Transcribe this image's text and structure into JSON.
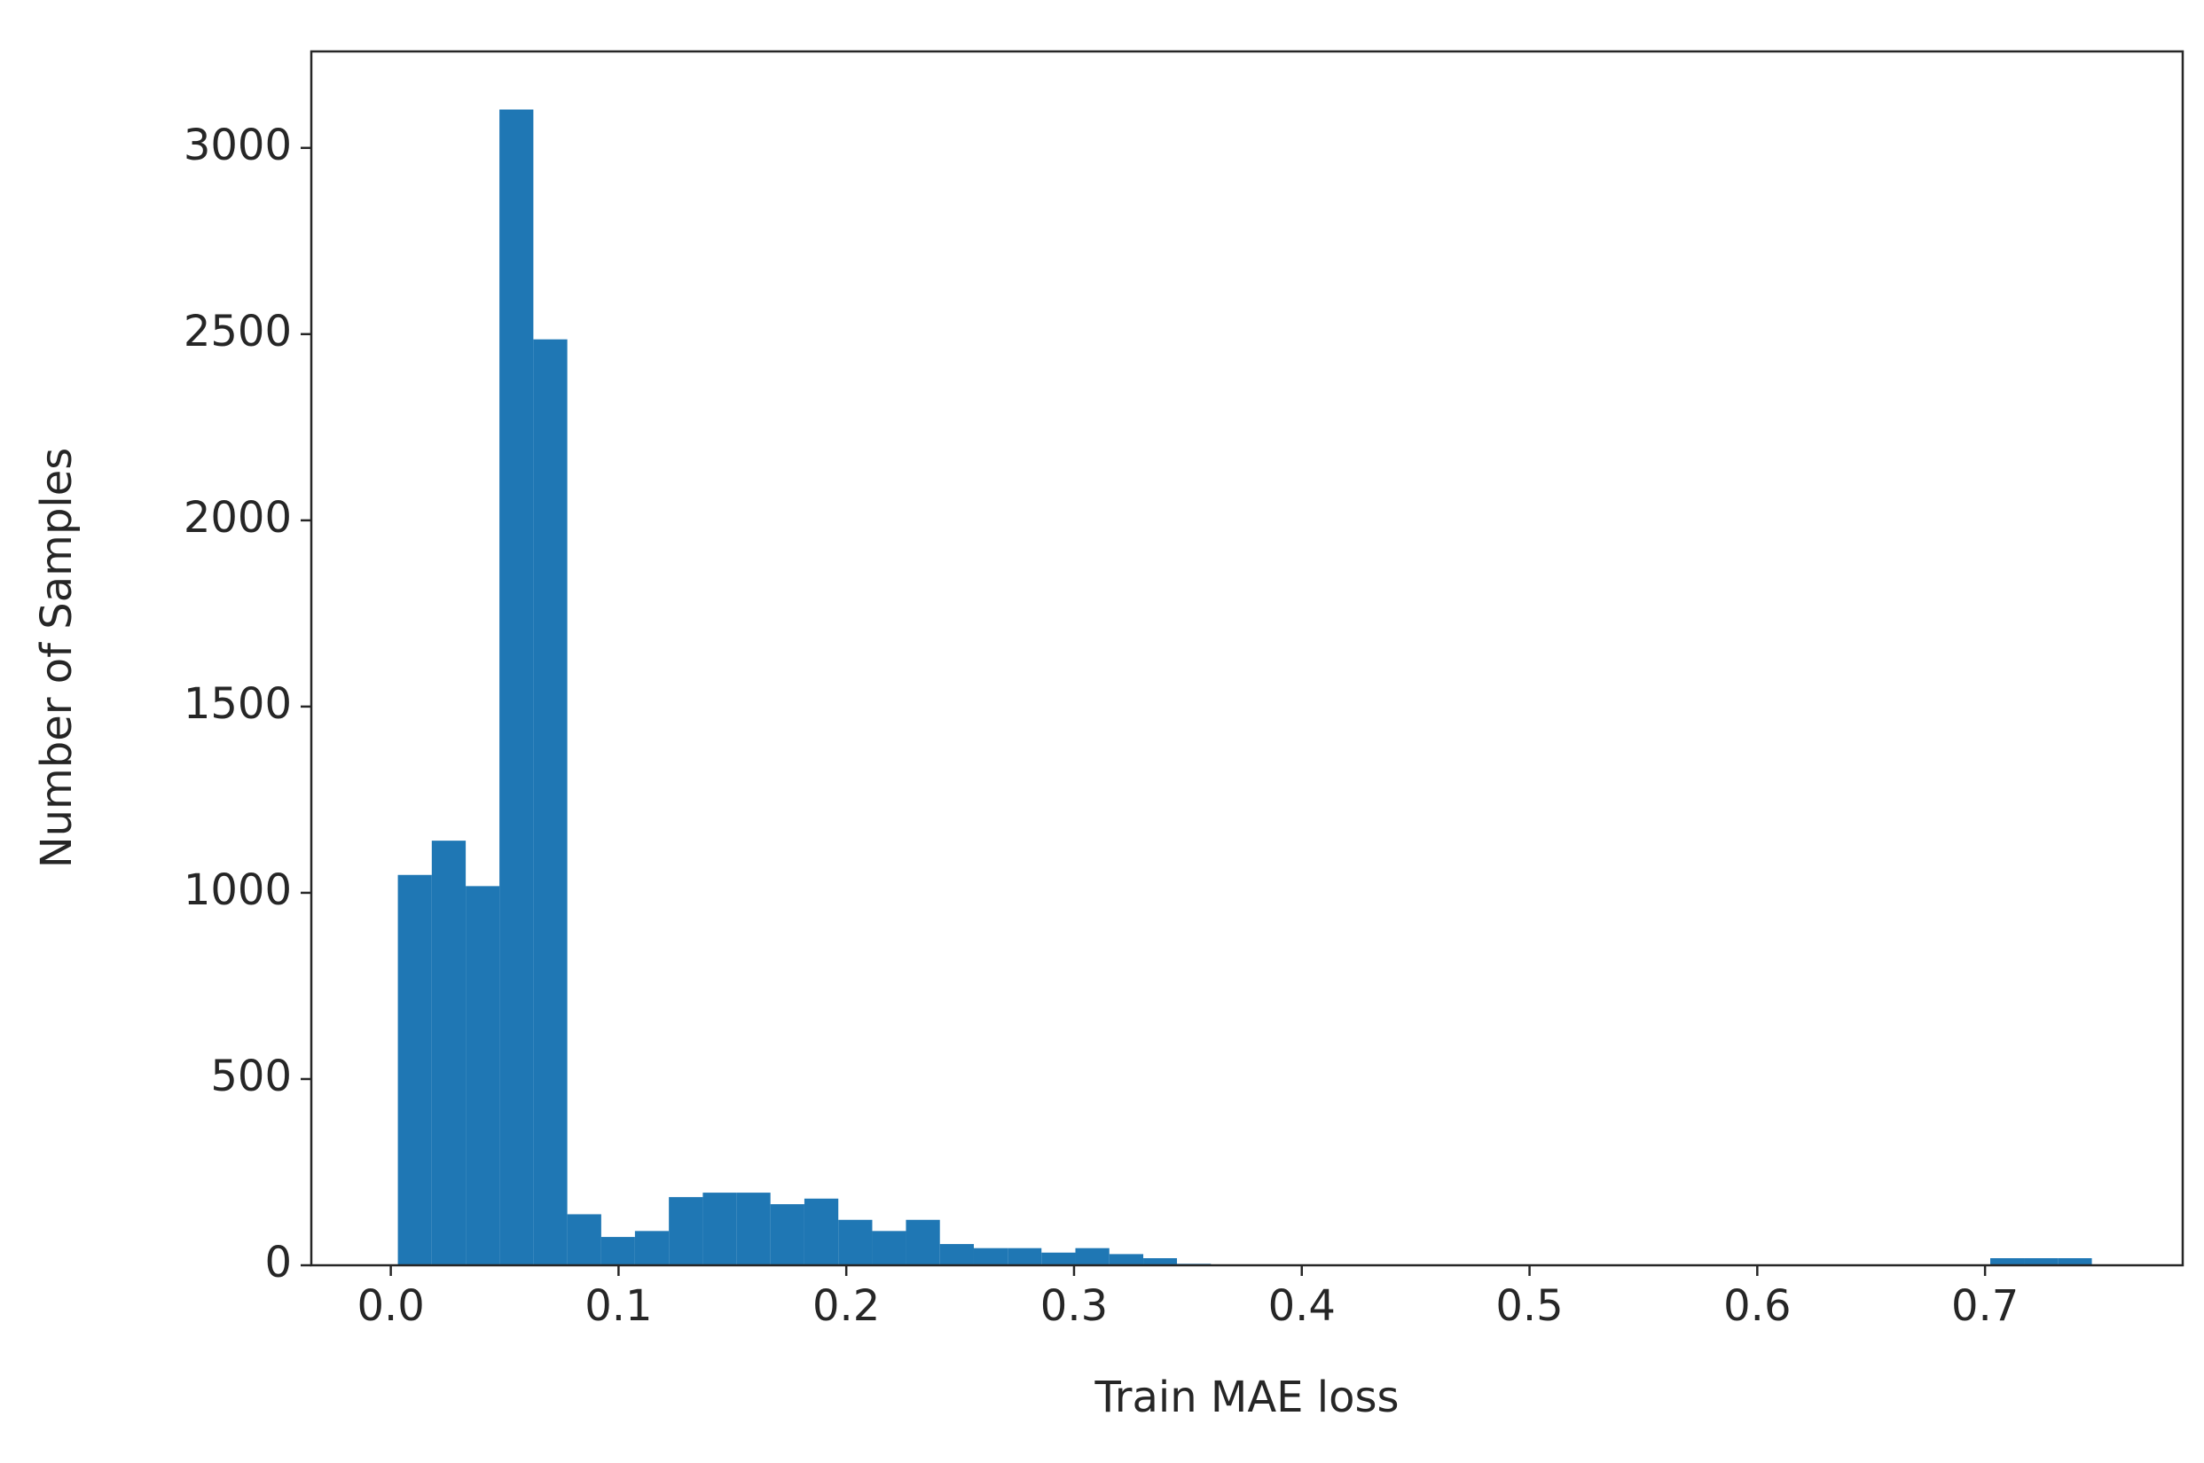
{
  "chart_data": {
    "type": "histogram",
    "xlabel": "Train MAE loss",
    "ylabel": "Number of Samples",
    "bins": [
      0.0031,
      0.018,
      0.0329,
      0.0477,
      0.0626,
      0.0775,
      0.0924,
      0.1072,
      0.1221,
      0.137,
      0.1519,
      0.1667,
      0.1816,
      0.1965,
      0.2114,
      0.2262,
      0.2411,
      0.256,
      0.2709,
      0.2857,
      0.3006,
      0.3155,
      0.3304,
      0.3452,
      0.3601,
      0.375,
      0.3899,
      0.4047,
      0.4196,
      0.4345,
      0.4494,
      0.4643,
      0.4791,
      0.494,
      0.5089,
      0.5238,
      0.5386,
      0.5535,
      0.5684,
      0.5833,
      0.5981,
      0.613,
      0.6279,
      0.6428,
      0.6576,
      0.6725,
      0.6874,
      0.7023,
      0.7171,
      0.732,
      0.7469
    ],
    "values": [
      1048,
      1140,
      1018,
      3103,
      2486,
      137,
      76,
      92,
      183,
      195,
      195,
      164,
      179,
      122,
      92,
      122,
      57,
      46,
      46,
      34,
      46,
      30,
      19,
      4,
      0,
      0,
      0,
      0,
      0,
      0,
      0,
      0,
      0,
      0,
      0,
      0,
      0,
      0,
      0,
      0,
      0,
      0,
      0,
      0,
      0,
      0,
      0,
      19,
      19,
      19
    ],
    "color": "#1f77b4",
    "xlim": [
      -0.0349,
      0.7868
    ],
    "ylim": [
      0,
      3259
    ],
    "xticks": [
      {
        "value": 0,
        "label": "0.0"
      },
      0.1,
      0.2,
      0.3,
      0.4,
      0.5,
      0.6,
      0.7
    ],
    "yticks": [
      0,
      500,
      1000,
      1500,
      2000,
      2500,
      3000
    ]
  }
}
